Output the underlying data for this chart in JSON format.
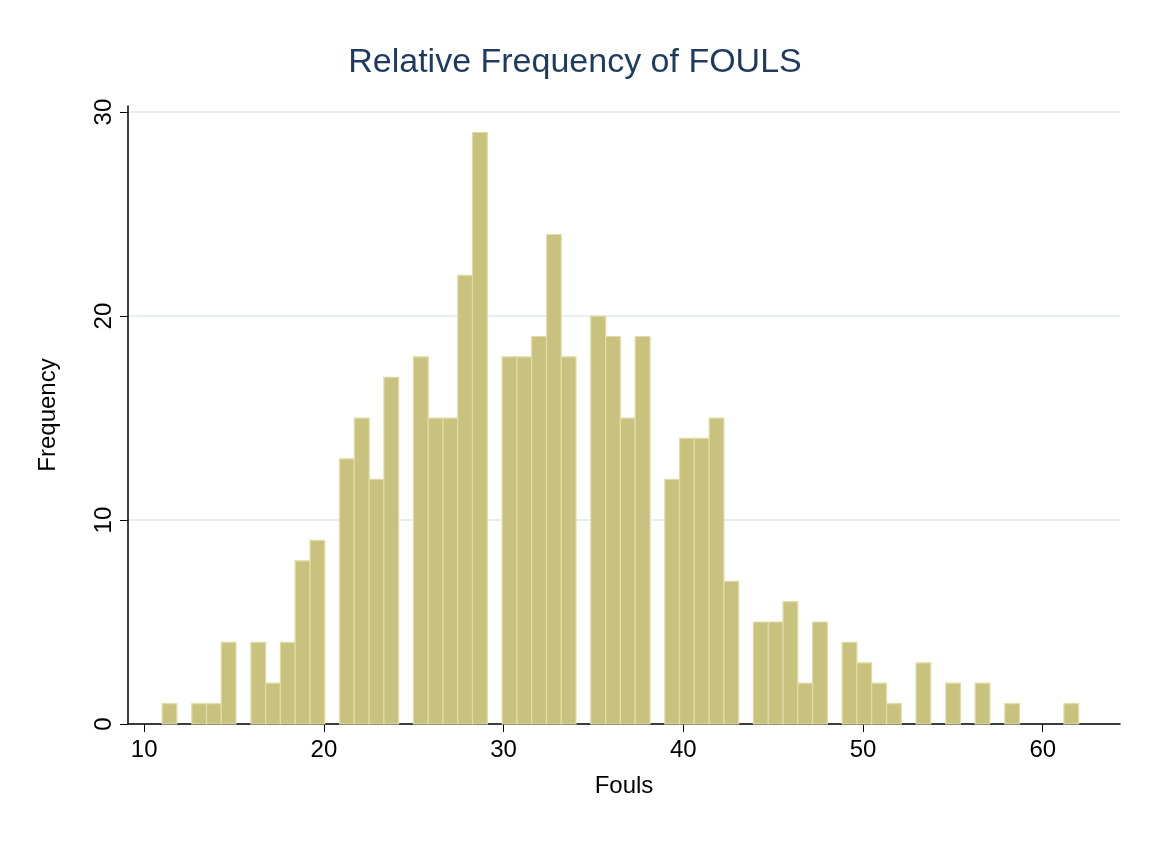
{
  "chart_data": {
    "type": "histogram",
    "title": "Relative Frequency of FOULS",
    "xlabel": "Fouls",
    "ylabel": "Frequency",
    "bins": [
      11,
      11.82,
      12.65,
      13.47,
      14.29,
      15.11,
      15.94,
      16.76,
      17.58,
      18.4,
      19.23,
      20.05,
      20.87,
      21.69,
      22.52,
      23.34,
      24.16,
      24.98,
      25.81,
      26.63,
      27.45,
      28.27,
      29.1,
      29.92,
      30.74,
      31.56,
      32.39,
      33.21,
      34.03,
      34.85,
      35.68,
      36.5,
      37.32,
      38.15,
      38.97,
      39.79,
      40.61,
      41.44,
      42.26,
      43.08,
      43.9,
      44.73,
      45.55,
      46.37,
      47.19,
      48.02,
      48.84,
      49.66,
      50.48,
      51.31,
      52.13,
      52.95,
      53.77,
      54.6,
      55.42,
      56.24,
      57.06,
      57.89,
      58.71,
      59.53,
      60.35,
      61.18,
      62
    ],
    "values": [
      1,
      0,
      1,
      1,
      4,
      0,
      4,
      2,
      4,
      8,
      9,
      0,
      13,
      15,
      12,
      17,
      0,
      18,
      15,
      15,
      22,
      29,
      0,
      18,
      18,
      19,
      24,
      18,
      0,
      20,
      19,
      15,
      19,
      0,
      12,
      14,
      14,
      15,
      7,
      0,
      5,
      5,
      6,
      2,
      5,
      0,
      4,
      3,
      2,
      1,
      0,
      3,
      0,
      2,
      0,
      2,
      0,
      1,
      0,
      0,
      0,
      1
    ],
    "color": "#c9c27f",
    "xlim": [
      9.1,
      64.3
    ],
    "ylim": [
      0,
      30.3
    ],
    "xticks": [
      10,
      20,
      30,
      40,
      50,
      60
    ],
    "yticks": [
      0,
      10,
      20,
      30
    ],
    "grid": "y"
  }
}
